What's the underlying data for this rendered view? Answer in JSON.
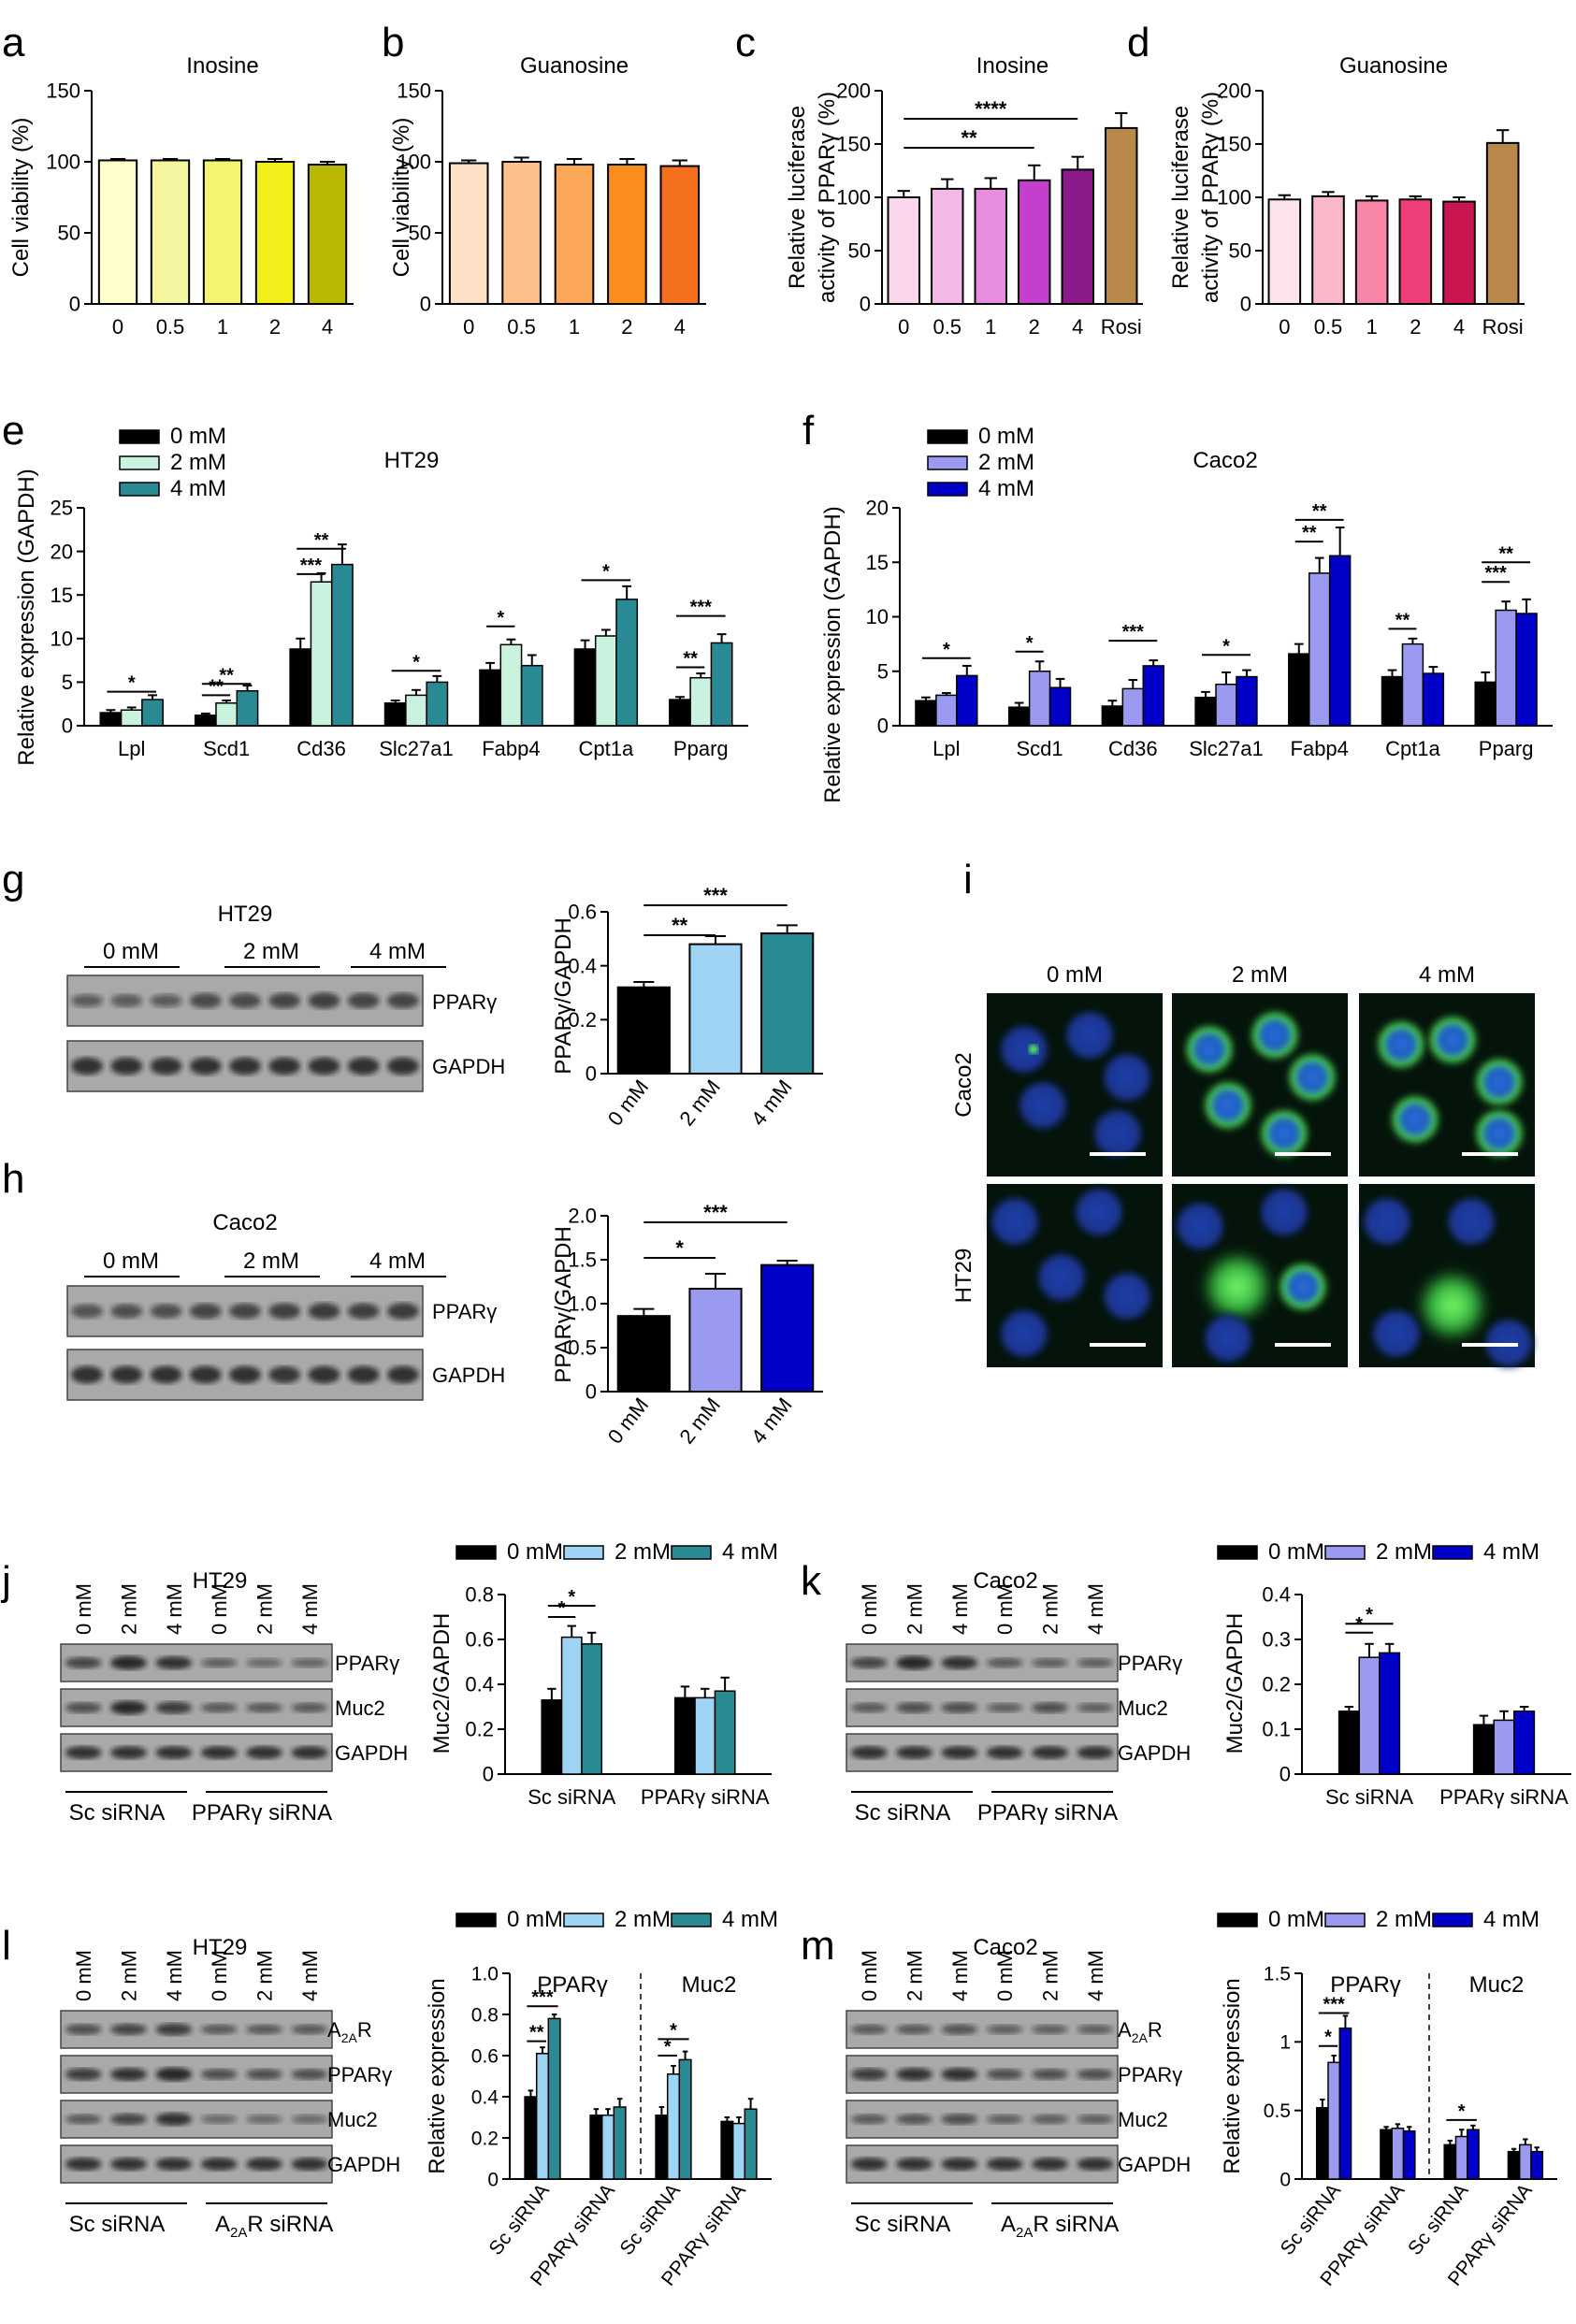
{
  "chart_data": [
    {
      "type": "bar",
      "panel": "a",
      "title": "Inosine",
      "ylabel": "Cell viability (%)",
      "categories": [
        "0",
        "0.5",
        "1",
        "2",
        "4"
      ],
      "values": [
        101,
        101,
        101,
        100,
        98
      ],
      "errors": [
        1,
        1,
        1,
        2,
        2
      ],
      "ylim": [
        0,
        150
      ],
      "yticks": [
        "0",
        "50",
        "100",
        "150"
      ],
      "colors": [
        "#ffffcc",
        "#f5f5a0",
        "#f4f470",
        "#f2ee1a",
        "#b8b800"
      ],
      "sig": []
    },
    {
      "type": "bar",
      "panel": "b",
      "title": "Guanosine",
      "ylabel": "Cell viability (%)",
      "categories": [
        "0",
        "0.5",
        "1",
        "2",
        "4"
      ],
      "values": [
        99,
        100,
        98,
        98,
        97
      ],
      "errors": [
        2,
        3,
        4,
        4,
        4
      ],
      "ylim": [
        0,
        150
      ],
      "yticks": [
        "0",
        "50",
        "100",
        "150"
      ],
      "colors": [
        "#fde0c5",
        "#fcc08a",
        "#fba858",
        "#fb8c1e",
        "#f5701e"
      ],
      "sig": []
    },
    {
      "type": "bar",
      "panel": "c",
      "title": "Inosine",
      "ylabel": "Relative luciferase activity of PPARγ (%)",
      "categories": [
        "0",
        "0.5",
        "1",
        "2",
        "4",
        "Rosi"
      ],
      "values": [
        100,
        108,
        108,
        116,
        126,
        165
      ],
      "errors": [
        6,
        9,
        10,
        14,
        12,
        14
      ],
      "ylim": [
        0,
        200
      ],
      "yticks": [
        "0",
        "50",
        "100",
        "150",
        "200"
      ],
      "colors": [
        "#fbd7ee",
        "#f3b8e5",
        "#e98de0",
        "#c43fcc",
        "#8b1a8b",
        "#b8894a"
      ],
      "sig": [
        {
          "from": 0,
          "to": 3,
          "label": "**"
        },
        {
          "from": 0,
          "to": 4,
          "label": "****"
        }
      ]
    },
    {
      "type": "bar",
      "panel": "d",
      "title": "Guanosine",
      "ylabel": "Relative luciferase activity of PPARγ (%)",
      "categories": [
        "0",
        "0.5",
        "1",
        "2",
        "4",
        "Rosi"
      ],
      "values": [
        98,
        101,
        97,
        98,
        96,
        151
      ],
      "errors": [
        4,
        4,
        4,
        3,
        4,
        12
      ],
      "ylim": [
        0,
        200
      ],
      "yticks": [
        "0",
        "50",
        "100",
        "150",
        "200"
      ],
      "colors": [
        "#fde3ea",
        "#f9b8c9",
        "#f785a6",
        "#ef3f7b",
        "#c8174e",
        "#b8894a"
      ],
      "sig": []
    },
    {
      "type": "bar",
      "panel": "e",
      "title": "HT29",
      "ylabel": "Relative expression (GAPDH)",
      "categories": [
        "Lpl",
        "Scd1",
        "Cd36",
        "Slc27a1",
        "Fabp4",
        "Cpt1a",
        "Pparg"
      ],
      "series": [
        {
          "name": "0 mM",
          "values": [
            1.5,
            1.2,
            8.8,
            2.6,
            6.4,
            8.8,
            3.0
          ],
          "errors": [
            0.3,
            0.2,
            1.2,
            0.3,
            0.8,
            1.0,
            0.3
          ]
        },
        {
          "name": "2 mM",
          "values": [
            1.8,
            2.6,
            16.5,
            3.5,
            9.3,
            10.3,
            5.5
          ],
          "errors": [
            0.3,
            0.3,
            1.0,
            0.6,
            0.6,
            0.7,
            0.5
          ]
        },
        {
          "name": "4 mM",
          "values": [
            3.0,
            4.0,
            18.5,
            5.0,
            6.9,
            14.5,
            9.5
          ],
          "errors": [
            0.5,
            0.6,
            2.3,
            0.7,
            1.2,
            1.5,
            1.0
          ]
        }
      ],
      "series_colors": [
        "#000000",
        "#c9f2df",
        "#2a8a94"
      ],
      "ylim": [
        0,
        25
      ],
      "yticks": [
        "0",
        "5",
        "10",
        "15",
        "20",
        "25"
      ],
      "sig": [
        {
          "cat": 0,
          "from": 0,
          "to": 2,
          "label": "*"
        },
        {
          "cat": 1,
          "from": 0,
          "to": 1,
          "label": "**"
        },
        {
          "cat": 1,
          "from": 0,
          "to": 2,
          "label": "**"
        },
        {
          "cat": 2,
          "from": 0,
          "to": 1,
          "label": "***"
        },
        {
          "cat": 2,
          "from": 0,
          "to": 2,
          "label": "**"
        },
        {
          "cat": 3,
          "from": 0,
          "to": 2,
          "label": "*"
        },
        {
          "cat": 4,
          "from": 0,
          "to": 1,
          "label": "*"
        },
        {
          "cat": 5,
          "from": 0,
          "to": 2,
          "label": "*"
        },
        {
          "cat": 6,
          "from": 0,
          "to": 1,
          "label": "**"
        },
        {
          "cat": 6,
          "from": 0,
          "to": 2,
          "label": "***"
        }
      ]
    },
    {
      "type": "bar",
      "panel": "f",
      "title": "Caco2",
      "ylabel": "Relative expression (GAPDH)",
      "categories": [
        "Lpl",
        "Scd1",
        "Cd36",
        "Slc27a1",
        "Fabp4",
        "Cpt1a",
        "Pparg"
      ],
      "series": [
        {
          "name": "0 mM",
          "values": [
            2.3,
            1.7,
            1.8,
            2.6,
            6.6,
            4.5,
            4.0
          ],
          "errors": [
            0.3,
            0.4,
            0.5,
            0.5,
            0.9,
            0.6,
            0.9
          ]
        },
        {
          "name": "2 mM",
          "values": [
            2.8,
            5.0,
            3.4,
            3.8,
            14.0,
            7.5,
            10.6
          ],
          "errors": [
            0.2,
            0.9,
            0.8,
            1.1,
            1.4,
            0.5,
            0.8
          ]
        },
        {
          "name": "4 mM",
          "values": [
            4.6,
            3.5,
            5.5,
            4.5,
            15.6,
            4.8,
            10.3
          ],
          "errors": [
            0.9,
            0.8,
            0.5,
            0.6,
            2.6,
            0.6,
            1.3
          ]
        }
      ],
      "series_colors": [
        "#000000",
        "#9a9af0",
        "#0000c8"
      ],
      "ylim": [
        0,
        20
      ],
      "yticks": [
        "0",
        "5",
        "10",
        "15",
        "20"
      ],
      "sig": [
        {
          "cat": 0,
          "from": 0,
          "to": 2,
          "label": "*"
        },
        {
          "cat": 1,
          "from": 0,
          "to": 1,
          "label": "*"
        },
        {
          "cat": 2,
          "from": 0,
          "to": 2,
          "label": "***"
        },
        {
          "cat": 3,
          "from": 0,
          "to": 2,
          "label": "*"
        },
        {
          "cat": 4,
          "from": 0,
          "to": 1,
          "label": "**"
        },
        {
          "cat": 4,
          "from": 0,
          "to": 2,
          "label": "**"
        },
        {
          "cat": 5,
          "from": 0,
          "to": 1,
          "label": "**"
        },
        {
          "cat": 6,
          "from": 0,
          "to": 1,
          "label": "***"
        },
        {
          "cat": 6,
          "from": 0,
          "to": 2,
          "label": "**"
        }
      ]
    },
    {
      "type": "bar",
      "panel": "g",
      "ylabel": "PPARγ/GAPDH",
      "categories": [
        "0 mM",
        "2 mM",
        "4 mM"
      ],
      "values": [
        0.32,
        0.48,
        0.52
      ],
      "errors": [
        0.02,
        0.03,
        0.03
      ],
      "ylim": [
        0,
        0.6
      ],
      "yticks": [
        "0",
        "0.2",
        "0.4",
        "0.6"
      ],
      "colors": [
        "#000000",
        "#9fd4f4",
        "#2a8a94"
      ],
      "sig": [
        {
          "from": 0,
          "to": 1,
          "label": "**"
        },
        {
          "from": 0,
          "to": 2,
          "label": "***"
        }
      ]
    },
    {
      "type": "bar",
      "panel": "h",
      "ylabel": "PPARγ/GAPDH",
      "categories": [
        "0 mM",
        "2 mM",
        "4 mM"
      ],
      "values": [
        0.86,
        1.17,
        1.44
      ],
      "errors": [
        0.08,
        0.17,
        0.05
      ],
      "ylim": [
        0,
        2.0
      ],
      "yticks": [
        "0",
        "0.5",
        "1.0",
        "1.5",
        "2.0"
      ],
      "colors": [
        "#000000",
        "#9a9af0",
        "#0000c8"
      ],
      "sig": [
        {
          "from": 0,
          "to": 1,
          "label": "*"
        },
        {
          "from": 0,
          "to": 2,
          "label": "***"
        }
      ]
    },
    {
      "type": "bar",
      "panel": "j",
      "ylabel": "Muc2/GAPDH",
      "categories": [
        "Sc siRNA",
        "PPARγ siRNA"
      ],
      "series": [
        {
          "name": "0 mM",
          "values": [
            0.33,
            0.34
          ],
          "errors": [
            0.05,
            0.05
          ]
        },
        {
          "name": "2 mM",
          "values": [
            0.61,
            0.34
          ],
          "errors": [
            0.05,
            0.04
          ]
        },
        {
          "name": "4 mM",
          "values": [
            0.58,
            0.37
          ],
          "errors": [
            0.05,
            0.06
          ]
        }
      ],
      "series_colors": [
        "#000000",
        "#9fd4f4",
        "#2a8a94"
      ],
      "ylim": [
        0,
        0.8
      ],
      "yticks": [
        "0",
        "0.2",
        "0.4",
        "0.6",
        "0.8"
      ],
      "sig": [
        {
          "cat": 0,
          "from": 0,
          "to": 1,
          "label": "*"
        },
        {
          "cat": 0,
          "from": 0,
          "to": 2,
          "label": "*"
        }
      ]
    },
    {
      "type": "bar",
      "panel": "k",
      "ylabel": "Muc2/GAPDH",
      "categories": [
        "Sc siRNA",
        "PPARγ siRNA"
      ],
      "series": [
        {
          "name": "0 mM",
          "values": [
            0.14,
            0.11
          ],
          "errors": [
            0.01,
            0.02
          ]
        },
        {
          "name": "2 mM",
          "values": [
            0.26,
            0.12
          ],
          "errors": [
            0.03,
            0.02
          ]
        },
        {
          "name": "4 mM",
          "values": [
            0.27,
            0.14
          ],
          "errors": [
            0.02,
            0.01
          ]
        }
      ],
      "series_colors": [
        "#000000",
        "#9a9af0",
        "#0000c8"
      ],
      "ylim": [
        0,
        0.4
      ],
      "yticks": [
        "0",
        "0.1",
        "0.2",
        "0.3",
        "0.4"
      ],
      "sig": [
        {
          "cat": 0,
          "from": 0,
          "to": 1,
          "label": "*"
        },
        {
          "cat": 0,
          "from": 0,
          "to": 2,
          "label": "*"
        }
      ]
    },
    {
      "type": "bar",
      "panel": "l",
      "ylabel": "Relative expression",
      "group_labels": [
        "PPARγ",
        "Muc2"
      ],
      "categories": [
        "Sc siRNA",
        "PPARγ siRNA",
        "Sc siRNA",
        "PPARγ siRNA"
      ],
      "series": [
        {
          "name": "0 mM",
          "values": [
            0.4,
            0.31,
            0.31,
            0.28
          ],
          "errors": [
            0.03,
            0.03,
            0.04,
            0.02
          ]
        },
        {
          "name": "2 mM",
          "values": [
            0.61,
            0.31,
            0.51,
            0.27
          ],
          "errors": [
            0.03,
            0.03,
            0.04,
            0.03
          ]
        },
        {
          "name": "4 mM",
          "values": [
            0.78,
            0.35,
            0.58,
            0.34
          ],
          "errors": [
            0.02,
            0.04,
            0.04,
            0.05
          ]
        }
      ],
      "series_colors": [
        "#000000",
        "#9fd4f4",
        "#2a8a94"
      ],
      "ylim": [
        0,
        1.0
      ],
      "yticks": [
        "0",
        "0.2",
        "0.4",
        "0.6",
        "0.8",
        "1.0"
      ],
      "sig": [
        {
          "cat": 0,
          "from": 0,
          "to": 1,
          "label": "**"
        },
        {
          "cat": 0,
          "from": 0,
          "to": 2,
          "label": "***"
        },
        {
          "cat": 2,
          "from": 0,
          "to": 1,
          "label": "*"
        },
        {
          "cat": 2,
          "from": 0,
          "to": 2,
          "label": "*"
        }
      ]
    },
    {
      "type": "bar",
      "panel": "m",
      "ylabel": "Relative expression",
      "group_labels": [
        "PPARγ",
        "Muc2"
      ],
      "categories": [
        "Sc siRNA",
        "PPARγ siRNA",
        "Sc siRNA",
        "PPARγ siRNA"
      ],
      "series": [
        {
          "name": "0 mM",
          "values": [
            0.52,
            0.36,
            0.25,
            0.2
          ],
          "errors": [
            0.06,
            0.02,
            0.03,
            0.02
          ]
        },
        {
          "name": "2 mM",
          "values": [
            0.85,
            0.37,
            0.31,
            0.25
          ],
          "errors": [
            0.05,
            0.03,
            0.05,
            0.04
          ]
        },
        {
          "name": "4 mM",
          "values": [
            1.1,
            0.35,
            0.36,
            0.2
          ],
          "errors": [
            0.09,
            0.03,
            0.03,
            0.03
          ]
        }
      ],
      "series_colors": [
        "#000000",
        "#9a9af0",
        "#0000c8"
      ],
      "ylim": [
        0,
        1.5
      ],
      "yticks": [
        "0",
        "0.5",
        "1",
        "1.5"
      ],
      "sig": [
        {
          "cat": 0,
          "from": 0,
          "to": 1,
          "label": "*"
        },
        {
          "cat": 0,
          "from": 0,
          "to": 2,
          "label": "***"
        },
        {
          "cat": 2,
          "from": 0,
          "to": 2,
          "label": "*"
        }
      ]
    }
  ],
  "panel_letters": [
    "a",
    "b",
    "c",
    "d",
    "e",
    "f",
    "g",
    "h",
    "i",
    "j",
    "k",
    "l",
    "m"
  ],
  "blots": {
    "g": {
      "cell": "HT29",
      "groups": [
        "0 mM",
        "2 mM",
        "4 mM"
      ],
      "bands": [
        "PPARγ",
        "GAPDH"
      ]
    },
    "h": {
      "cell": "Caco2",
      "groups": [
        "0 mM",
        "2 mM",
        "4 mM"
      ],
      "bands": [
        "PPARγ",
        "GAPDH"
      ]
    },
    "j": {
      "cell": "HT29",
      "lanes": [
        "0 mM",
        "2 mM",
        "4 mM",
        "0 mM",
        "2 mM",
        "4 mM"
      ],
      "bands": [
        "PPARγ",
        "Muc2",
        "GAPDH"
      ],
      "groups": [
        "Sc siRNA",
        "PPARγ siRNA"
      ]
    },
    "k": {
      "cell": "Caco2",
      "lanes": [
        "0 mM",
        "2 mM",
        "4 mM",
        "0 mM",
        "2 mM",
        "4 mM"
      ],
      "bands": [
        "PPARγ",
        "Muc2",
        "GAPDH"
      ],
      "groups": [
        "Sc siRNA",
        "PPARγ siRNA"
      ]
    },
    "l": {
      "cell": "HT29",
      "lanes": [
        "0 mM",
        "2 mM",
        "4 mM",
        "0 mM",
        "2 mM",
        "4 mM"
      ],
      "bands": [
        "A2AR",
        "PPARγ",
        "Muc2",
        "GAPDH"
      ],
      "groups": [
        "Sc siRNA",
        "A2AR siRNA"
      ]
    },
    "m": {
      "cell": "Caco2",
      "lanes": [
        "0 mM",
        "2 mM",
        "4 mM",
        "0 mM",
        "2 mM",
        "4 mM"
      ],
      "bands": [
        "A2AR",
        "PPARγ",
        "Muc2",
        "GAPDH"
      ],
      "groups": [
        "Sc siRNA",
        "A2AR siRNA"
      ]
    }
  },
  "microscopy": {
    "columns": [
      "0 mM",
      "2 mM",
      "4 mM"
    ],
    "rows": [
      "Caco2",
      "HT29"
    ]
  }
}
